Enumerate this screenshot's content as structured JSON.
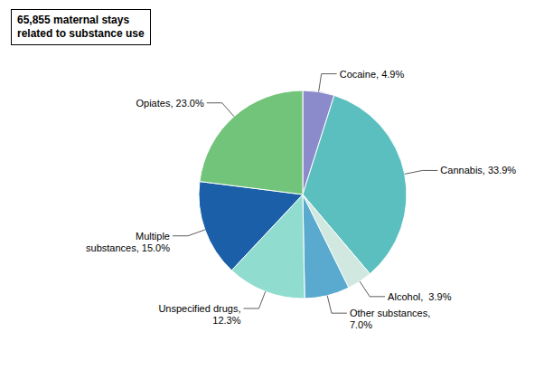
{
  "chart_data": {
    "type": "pie",
    "title": "65,855 maternal stays\nrelated to substance use",
    "categories": [
      "Cocaine, 4.9%",
      "Cannabis, 33.9%",
      "Alcohol,  3.9%",
      "Other substances,\n7.0%",
      "Unspecified drugs,\n12.3%",
      "Multiple\nsubstances, 15.0%",
      "Opiates, 23.0%"
    ],
    "values": [
      4.9,
      33.9,
      3.9,
      7.0,
      12.3,
      15.0,
      23.0
    ],
    "colors": [
      "#8b8bcc",
      "#5bbfbf",
      "#d0e8e0",
      "#5aaad0",
      "#90ddd0",
      "#1a5fa8",
      "#72c47a"
    ]
  }
}
